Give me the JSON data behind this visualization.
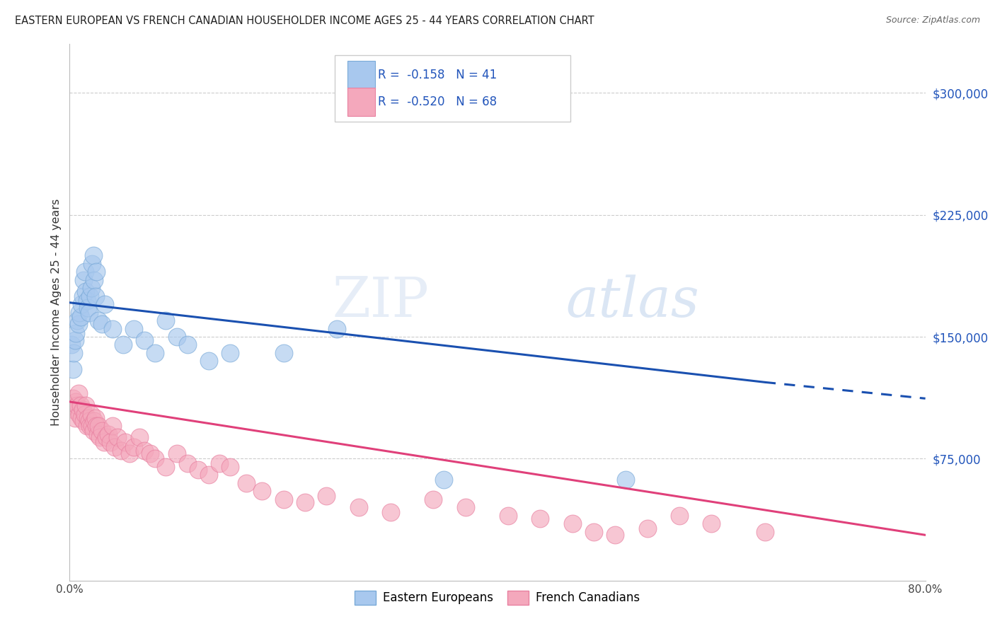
{
  "title": "EASTERN EUROPEAN VS FRENCH CANADIAN HOUSEHOLDER INCOME AGES 25 - 44 YEARS CORRELATION CHART",
  "source": "Source: ZipAtlas.com",
  "ylabel": "Householder Income Ages 25 - 44 years",
  "ytick_labels": [
    "$75,000",
    "$150,000",
    "$225,000",
    "$300,000"
  ],
  "ytick_values": [
    75000,
    150000,
    225000,
    300000
  ],
  "xmin": 0.0,
  "xmax": 0.8,
  "ymin": 0,
  "ymax": 330000,
  "watermark_zip": "ZIP",
  "watermark_atlas": "atlas",
  "legend_blue_text": "R =  -0.158   N = 41",
  "legend_pink_text": "R =  -0.520   N = 68",
  "legend_label_blue": "Eastern Europeans",
  "legend_label_pink": "French Canadians",
  "blue_color": "#A8C8EE",
  "pink_color": "#F4A8BC",
  "blue_edge_color": "#7AAAD8",
  "pink_edge_color": "#E880A0",
  "blue_line_color": "#1A50B0",
  "pink_line_color": "#E0407A",
  "blue_scatter_x": [
    0.002,
    0.003,
    0.004,
    0.005,
    0.006,
    0.007,
    0.008,
    0.009,
    0.01,
    0.011,
    0.012,
    0.013,
    0.014,
    0.015,
    0.016,
    0.017,
    0.018,
    0.019,
    0.02,
    0.021,
    0.022,
    0.023,
    0.024,
    0.025,
    0.027,
    0.03,
    0.033,
    0.04,
    0.05,
    0.06,
    0.07,
    0.08,
    0.09,
    0.1,
    0.11,
    0.13,
    0.15,
    0.2,
    0.25,
    0.35,
    0.52
  ],
  "blue_scatter_y": [
    145000,
    130000,
    140000,
    148000,
    152000,
    160000,
    158000,
    165000,
    162000,
    170000,
    175000,
    185000,
    190000,
    178000,
    172000,
    168000,
    165000,
    175000,
    180000,
    195000,
    200000,
    185000,
    175000,
    190000,
    160000,
    158000,
    170000,
    155000,
    145000,
    155000,
    148000,
    140000,
    160000,
    150000,
    145000,
    135000,
    140000,
    140000,
    155000,
    62000,
    62000
  ],
  "pink_scatter_x": [
    0.002,
    0.003,
    0.004,
    0.005,
    0.006,
    0.007,
    0.008,
    0.009,
    0.01,
    0.011,
    0.012,
    0.013,
    0.014,
    0.015,
    0.016,
    0.017,
    0.018,
    0.019,
    0.02,
    0.021,
    0.022,
    0.023,
    0.024,
    0.025,
    0.026,
    0.027,
    0.028,
    0.03,
    0.032,
    0.034,
    0.036,
    0.038,
    0.04,
    0.042,
    0.045,
    0.048,
    0.052,
    0.056,
    0.06,
    0.065,
    0.07,
    0.075,
    0.08,
    0.09,
    0.1,
    0.11,
    0.12,
    0.13,
    0.14,
    0.15,
    0.165,
    0.18,
    0.2,
    0.22,
    0.24,
    0.27,
    0.3,
    0.34,
    0.37,
    0.41,
    0.44,
    0.47,
    0.49,
    0.51,
    0.54,
    0.57,
    0.6,
    0.65
  ],
  "pink_scatter_y": [
    108000,
    112000,
    105000,
    100000,
    110000,
    108000,
    115000,
    102000,
    108000,
    100000,
    105000,
    98000,
    102000,
    108000,
    95000,
    100000,
    98000,
    95000,
    102000,
    95000,
    92000,
    98000,
    100000,
    95000,
    90000,
    95000,
    88000,
    92000,
    85000,
    88000,
    90000,
    85000,
    95000,
    82000,
    88000,
    80000,
    85000,
    78000,
    82000,
    88000,
    80000,
    78000,
    75000,
    70000,
    78000,
    72000,
    68000,
    65000,
    72000,
    70000,
    60000,
    55000,
    50000,
    48000,
    52000,
    45000,
    42000,
    50000,
    45000,
    40000,
    38000,
    35000,
    30000,
    28000,
    32000,
    40000,
    35000,
    30000
  ],
  "grid_color": "#CCCCCC",
  "background_color": "#FFFFFF"
}
